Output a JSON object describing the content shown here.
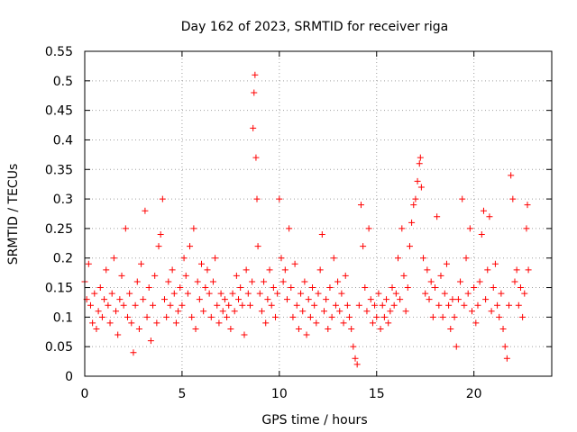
{
  "chart_data": {
    "type": "scatter",
    "title": "Day 162 of 2023, SRMTID for receiver riga",
    "xlabel": "GPS time / hours",
    "ylabel": "SRMTID / TECUs",
    "xlim": [
      0,
      24
    ],
    "ylim": [
      0,
      0.55
    ],
    "xticks": [
      0,
      5,
      10,
      15,
      20
    ],
    "xtick_labels": [
      "0",
      "5",
      "10",
      "15",
      "20"
    ],
    "yticks": [
      0,
      0.05,
      0.1,
      0.15,
      0.2,
      0.25,
      0.3,
      0.35,
      0.4,
      0.45,
      0.5,
      0.55
    ],
    "ytick_labels": [
      "0",
      "0.05",
      "0.1",
      "0.15",
      "0.2",
      "0.25",
      "0.3",
      "0.35",
      "0.4",
      "0.45",
      "0.5",
      "0.55"
    ],
    "grid": true,
    "marker": "+",
    "color": "#ff0000",
    "series": [
      {
        "name": "SRMTID",
        "points": [
          [
            0.0,
            0.16
          ],
          [
            0.1,
            0.13
          ],
          [
            0.2,
            0.19
          ],
          [
            0.3,
            0.12
          ],
          [
            0.4,
            0.09
          ],
          [
            0.5,
            0.14
          ],
          [
            0.6,
            0.08
          ],
          [
            0.7,
            0.11
          ],
          [
            0.8,
            0.15
          ],
          [
            0.9,
            0.1
          ],
          [
            1.0,
            0.13
          ],
          [
            1.1,
            0.18
          ],
          [
            1.2,
            0.12
          ],
          [
            1.3,
            0.09
          ],
          [
            1.4,
            0.14
          ],
          [
            1.5,
            0.2
          ],
          [
            1.6,
            0.11
          ],
          [
            1.7,
            0.07
          ],
          [
            1.8,
            0.13
          ],
          [
            1.9,
            0.17
          ],
          [
            2.0,
            0.12
          ],
          [
            2.1,
            0.25
          ],
          [
            2.2,
            0.1
          ],
          [
            2.3,
            0.14
          ],
          [
            2.4,
            0.09
          ],
          [
            2.5,
            0.04
          ],
          [
            2.6,
            0.12
          ],
          [
            2.7,
            0.16
          ],
          [
            2.8,
            0.08
          ],
          [
            2.9,
            0.19
          ],
          [
            3.0,
            0.13
          ],
          [
            3.1,
            0.28
          ],
          [
            3.2,
            0.1
          ],
          [
            3.3,
            0.15
          ],
          [
            3.4,
            0.06
          ],
          [
            3.5,
            0.12
          ],
          [
            3.6,
            0.17
          ],
          [
            3.7,
            0.09
          ],
          [
            3.8,
            0.22
          ],
          [
            3.9,
            0.24
          ],
          [
            4.0,
            0.3
          ],
          [
            4.1,
            0.13
          ],
          [
            4.2,
            0.1
          ],
          [
            4.3,
            0.16
          ],
          [
            4.4,
            0.12
          ],
          [
            4.5,
            0.18
          ],
          [
            4.6,
            0.14
          ],
          [
            4.7,
            0.09
          ],
          [
            4.8,
            0.11
          ],
          [
            4.9,
            0.15
          ],
          [
            5.0,
            0.12
          ],
          [
            5.1,
            0.2
          ],
          [
            5.2,
            0.17
          ],
          [
            5.3,
            0.14
          ],
          [
            5.4,
            0.22
          ],
          [
            5.5,
            0.1
          ],
          [
            5.6,
            0.25
          ],
          [
            5.7,
            0.08
          ],
          [
            5.8,
            0.16
          ],
          [
            5.9,
            0.13
          ],
          [
            6.0,
            0.19
          ],
          [
            6.1,
            0.11
          ],
          [
            6.2,
            0.15
          ],
          [
            6.3,
            0.18
          ],
          [
            6.4,
            0.14
          ],
          [
            6.5,
            0.1
          ],
          [
            6.6,
            0.16
          ],
          [
            6.7,
            0.2
          ],
          [
            6.8,
            0.12
          ],
          [
            6.9,
            0.09
          ],
          [
            7.0,
            0.14
          ],
          [
            7.1,
            0.11
          ],
          [
            7.2,
            0.13
          ],
          [
            7.3,
            0.1
          ],
          [
            7.4,
            0.12
          ],
          [
            7.5,
            0.08
          ],
          [
            7.6,
            0.14
          ],
          [
            7.7,
            0.11
          ],
          [
            7.8,
            0.17
          ],
          [
            7.9,
            0.13
          ],
          [
            8.0,
            0.15
          ],
          [
            8.1,
            0.12
          ],
          [
            8.2,
            0.07
          ],
          [
            8.3,
            0.18
          ],
          [
            8.4,
            0.14
          ],
          [
            8.5,
            0.12
          ],
          [
            8.6,
            0.16
          ],
          [
            8.65,
            0.42
          ],
          [
            8.7,
            0.48
          ],
          [
            8.75,
            0.51
          ],
          [
            8.8,
            0.37
          ],
          [
            8.85,
            0.3
          ],
          [
            8.9,
            0.22
          ],
          [
            9.0,
            0.14
          ],
          [
            9.1,
            0.11
          ],
          [
            9.2,
            0.16
          ],
          [
            9.3,
            0.09
          ],
          [
            9.4,
            0.13
          ],
          [
            9.5,
            0.18
          ],
          [
            9.6,
            0.12
          ],
          [
            9.7,
            0.15
          ],
          [
            9.8,
            0.1
          ],
          [
            9.9,
            0.14
          ],
          [
            10.0,
            0.3
          ],
          [
            10.1,
            0.2
          ],
          [
            10.2,
            0.16
          ],
          [
            10.3,
            0.18
          ],
          [
            10.4,
            0.13
          ],
          [
            10.5,
            0.25
          ],
          [
            10.6,
            0.15
          ],
          [
            10.7,
            0.1
          ],
          [
            10.8,
            0.19
          ],
          [
            10.9,
            0.12
          ],
          [
            11.0,
            0.08
          ],
          [
            11.1,
            0.14
          ],
          [
            11.2,
            0.11
          ],
          [
            11.3,
            0.16
          ],
          [
            11.4,
            0.07
          ],
          [
            11.5,
            0.13
          ],
          [
            11.6,
            0.1
          ],
          [
            11.7,
            0.15
          ],
          [
            11.8,
            0.12
          ],
          [
            11.9,
            0.09
          ],
          [
            12.0,
            0.14
          ],
          [
            12.1,
            0.18
          ],
          [
            12.2,
            0.24
          ],
          [
            12.3,
            0.11
          ],
          [
            12.4,
            0.13
          ],
          [
            12.5,
            0.08
          ],
          [
            12.6,
            0.15
          ],
          [
            12.7,
            0.1
          ],
          [
            12.8,
            0.2
          ],
          [
            12.9,
            0.12
          ],
          [
            13.0,
            0.16
          ],
          [
            13.1,
            0.11
          ],
          [
            13.2,
            0.14
          ],
          [
            13.3,
            0.09
          ],
          [
            13.4,
            0.17
          ],
          [
            13.5,
            0.12
          ],
          [
            13.6,
            0.1
          ],
          [
            13.7,
            0.08
          ],
          [
            13.8,
            0.05
          ],
          [
            13.9,
            0.03
          ],
          [
            14.0,
            0.02
          ],
          [
            14.1,
            0.12
          ],
          [
            14.2,
            0.29
          ],
          [
            14.3,
            0.22
          ],
          [
            14.4,
            0.15
          ],
          [
            14.5,
            0.11
          ],
          [
            14.6,
            0.25
          ],
          [
            14.7,
            0.13
          ],
          [
            14.8,
            0.09
          ],
          [
            14.9,
            0.12
          ],
          [
            15.0,
            0.1
          ],
          [
            15.1,
            0.14
          ],
          [
            15.2,
            0.08
          ],
          [
            15.3,
            0.12
          ],
          [
            15.4,
            0.1
          ],
          [
            15.5,
            0.13
          ],
          [
            15.6,
            0.09
          ],
          [
            15.7,
            0.11
          ],
          [
            15.8,
            0.15
          ],
          [
            15.9,
            0.12
          ],
          [
            16.0,
            0.14
          ],
          [
            16.1,
            0.2
          ],
          [
            16.2,
            0.13
          ],
          [
            16.3,
            0.25
          ],
          [
            16.4,
            0.17
          ],
          [
            16.5,
            0.11
          ],
          [
            16.6,
            0.15
          ],
          [
            16.7,
            0.22
          ],
          [
            16.8,
            0.26
          ],
          [
            16.9,
            0.29
          ],
          [
            17.0,
            0.3
          ],
          [
            17.1,
            0.33
          ],
          [
            17.2,
            0.36
          ],
          [
            17.25,
            0.37
          ],
          [
            17.3,
            0.32
          ],
          [
            17.4,
            0.2
          ],
          [
            17.5,
            0.14
          ],
          [
            17.6,
            0.18
          ],
          [
            17.7,
            0.13
          ],
          [
            17.8,
            0.16
          ],
          [
            17.9,
            0.1
          ],
          [
            18.0,
            0.15
          ],
          [
            18.1,
            0.27
          ],
          [
            18.2,
            0.12
          ],
          [
            18.3,
            0.17
          ],
          [
            18.4,
            0.1
          ],
          [
            18.5,
            0.14
          ],
          [
            18.6,
            0.19
          ],
          [
            18.7,
            0.12
          ],
          [
            18.8,
            0.08
          ],
          [
            18.9,
            0.13
          ],
          [
            19.0,
            0.1
          ],
          [
            19.1,
            0.05
          ],
          [
            19.2,
            0.13
          ],
          [
            19.3,
            0.16
          ],
          [
            19.4,
            0.3
          ],
          [
            19.5,
            0.12
          ],
          [
            19.6,
            0.2
          ],
          [
            19.7,
            0.14
          ],
          [
            19.8,
            0.25
          ],
          [
            19.9,
            0.11
          ],
          [
            20.0,
            0.15
          ],
          [
            20.1,
            0.09
          ],
          [
            20.2,
            0.12
          ],
          [
            20.3,
            0.16
          ],
          [
            20.4,
            0.24
          ],
          [
            20.5,
            0.28
          ],
          [
            20.6,
            0.13
          ],
          [
            20.7,
            0.18
          ],
          [
            20.8,
            0.27
          ],
          [
            20.9,
            0.11
          ],
          [
            21.0,
            0.15
          ],
          [
            21.1,
            0.19
          ],
          [
            21.2,
            0.12
          ],
          [
            21.3,
            0.1
          ],
          [
            21.4,
            0.14
          ],
          [
            21.5,
            0.08
          ],
          [
            21.6,
            0.05
          ],
          [
            21.7,
            0.03
          ],
          [
            21.8,
            0.12
          ],
          [
            21.9,
            0.34
          ],
          [
            22.0,
            0.3
          ],
          [
            22.1,
            0.16
          ],
          [
            22.2,
            0.18
          ],
          [
            22.3,
            0.12
          ],
          [
            22.4,
            0.15
          ],
          [
            22.5,
            0.1
          ],
          [
            22.6,
            0.14
          ],
          [
            22.7,
            0.25
          ],
          [
            22.75,
            0.29
          ],
          [
            22.8,
            0.18
          ]
        ]
      }
    ]
  }
}
